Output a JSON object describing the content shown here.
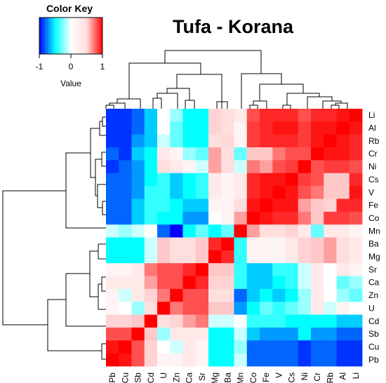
{
  "chart_data": {
    "type": "heatmap",
    "title": "Tufa - Korana",
    "color_key": {
      "title": "Color Key",
      "xlabel": "Value",
      "ticks": [
        "-1",
        "0",
        "1"
      ],
      "range": [
        -1,
        1
      ],
      "colors": {
        "low": "#0000ff",
        "mid_low": "#00ffff",
        "mid": "#ffffff",
        "high": "#ff0000"
      }
    },
    "row_labels": [
      "Li",
      "Al",
      "Rb",
      "Cr",
      "Ni",
      "Cs",
      "V",
      "Fe",
      "Co",
      "Mn",
      "Ba",
      "Mg",
      "Sr",
      "Ca",
      "Zn",
      "U",
      "Cd",
      "Sb",
      "Cu",
      "Pb"
    ],
    "col_labels": [
      "Pb",
      "Cu",
      "Sb",
      "Cd",
      "U",
      "Zn",
      "Ca",
      "Sr",
      "Mg",
      "Ba",
      "Mn",
      "Co",
      "Fe",
      "V",
      "Cs",
      "Ni",
      "Cr",
      "Rb",
      "Al",
      "Li"
    ],
    "values": [
      [
        -0.9,
        -0.9,
        -0.8,
        -0.6,
        0.0,
        -0.2,
        -0.5,
        -0.5,
        0.4,
        0.3,
        0.2,
        0.8,
        0.9,
        0.9,
        0.9,
        0.8,
        0.9,
        0.9,
        0.95,
        1.0
      ],
      [
        -0.9,
        -0.9,
        -0.8,
        -0.6,
        0.0,
        -0.3,
        -0.5,
        -0.5,
        0.4,
        0.3,
        0.1,
        0.85,
        0.9,
        0.95,
        0.95,
        0.85,
        0.95,
        0.95,
        1.0,
        0.95
      ],
      [
        -0.9,
        -0.9,
        -0.7,
        -0.6,
        -0.1,
        -0.3,
        -0.5,
        -0.5,
        0.3,
        0.35,
        0.1,
        0.85,
        0.9,
        0.9,
        0.9,
        0.85,
        0.95,
        1.0,
        0.95,
        0.9
      ],
      [
        -0.8,
        -0.9,
        -0.6,
        -0.5,
        0.2,
        0.1,
        -0.2,
        -0.3,
        0.6,
        0.3,
        -0.3,
        0.5,
        0.5,
        0.7,
        0.8,
        0.8,
        1.0,
        0.95,
        0.95,
        0.9
      ],
      [
        -0.9,
        -0.8,
        -0.7,
        -0.5,
        0.3,
        0.2,
        0.1,
        -0.1,
        0.6,
        0.3,
        -0.1,
        0.7,
        0.6,
        0.8,
        0.85,
        1.0,
        0.8,
        0.85,
        0.85,
        0.8
      ],
      [
        -0.8,
        -0.8,
        -0.7,
        -0.5,
        -0.4,
        -0.6,
        -0.5,
        -0.4,
        0.2,
        0.1,
        0.2,
        0.9,
        0.95,
        0.95,
        1.0,
        0.85,
        0.8,
        0.5,
        0.5,
        0.9
      ],
      [
        -0.8,
        -0.8,
        -0.7,
        -0.4,
        -0.4,
        -0.6,
        -0.5,
        -0.4,
        0.2,
        0.1,
        0.2,
        0.9,
        0.95,
        1.0,
        0.95,
        0.8,
        0.7,
        0.5,
        0.5,
        0.95
      ],
      [
        -0.8,
        -0.8,
        -0.6,
        -0.4,
        -0.4,
        -0.5,
        -0.6,
        -0.6,
        0.1,
        0.1,
        0.3,
        0.95,
        1.0,
        0.95,
        0.95,
        0.6,
        0.5,
        0.4,
        0.9,
        0.9
      ],
      [
        -0.8,
        -0.8,
        -0.6,
        -0.4,
        -0.5,
        -0.5,
        -0.7,
        -0.7,
        0.0,
        0.1,
        0.6,
        1.0,
        0.95,
        0.9,
        0.9,
        0.7,
        0.5,
        0.85,
        0.85,
        0.8
      ],
      [
        -0.1,
        -0.2,
        -0.1,
        0.0,
        -0.8,
        -1.0,
        -0.5,
        -0.3,
        -0.5,
        -0.3,
        1.0,
        0.6,
        0.3,
        0.3,
        0.4,
        0.2,
        -0.3,
        0.2,
        0.2,
        0.1
      ],
      [
        -0.5,
        -0.5,
        -0.5,
        -0.1,
        0.5,
        0.3,
        0.3,
        0.5,
        0.9,
        1.0,
        -0.4,
        0.1,
        0.1,
        0.1,
        0.2,
        0.4,
        0.5,
        0.6,
        0.3,
        0.2
      ],
      [
        -0.5,
        -0.5,
        -0.5,
        -0.1,
        0.5,
        0.3,
        0.3,
        0.5,
        1.0,
        0.9,
        -0.4,
        0.1,
        0.1,
        0.1,
        0.2,
        0.4,
        0.5,
        0.6,
        0.3,
        0.2
      ],
      [
        0.1,
        0.1,
        0.2,
        0.7,
        0.8,
        0.8,
        0.9,
        1.0,
        0.5,
        0.5,
        -0.4,
        -0.6,
        -0.6,
        -0.4,
        -0.4,
        -0.1,
        0.2,
        0.0,
        0.2,
        0.1
      ],
      [
        0.2,
        0.2,
        0.2,
        0.6,
        0.8,
        0.8,
        1.0,
        0.9,
        0.4,
        0.4,
        -0.4,
        -0.6,
        -0.6,
        -0.5,
        -0.4,
        -0.1,
        0.2,
        0.0,
        -0.3,
        -0.2
      ],
      [
        0.1,
        -0.1,
        0.2,
        0.4,
        0.7,
        1.0,
        0.8,
        0.8,
        0.3,
        0.3,
        -0.8,
        -0.6,
        -0.5,
        -0.6,
        -0.5,
        -0.2,
        0.2,
        0.0,
        -0.2,
        -0.3
      ],
      [
        0.1,
        0.0,
        -0.2,
        0.3,
        1.0,
        0.7,
        0.8,
        0.8,
        0.5,
        0.5,
        -0.7,
        -0.5,
        -0.3,
        -0.4,
        -0.3,
        -0.2,
        0.2,
        -0.1,
        0.1,
        0.0
      ],
      [
        0.4,
        0.4,
        0.5,
        1.0,
        0.3,
        0.4,
        0.6,
        0.7,
        -0.1,
        -0.1,
        0.0,
        -0.4,
        -0.4,
        -0.4,
        -0.5,
        -0.5,
        -0.5,
        -0.5,
        -0.6,
        -0.6
      ],
      [
        0.8,
        0.8,
        1.0,
        0.5,
        -0.2,
        0.2,
        0.2,
        0.2,
        -0.5,
        -0.5,
        -0.1,
        -0.6,
        -0.7,
        -0.7,
        -0.7,
        -0.5,
        -0.7,
        -0.7,
        -0.8,
        -0.8
      ],
      [
        0.95,
        1.0,
        0.8,
        0.4,
        0.0,
        -0.1,
        0.2,
        0.1,
        -0.5,
        -0.5,
        -0.2,
        -0.8,
        -0.8,
        -0.8,
        -0.8,
        -0.9,
        -0.8,
        -0.8,
        -0.9,
        -0.9
      ],
      [
        1.0,
        0.95,
        0.8,
        0.4,
        0.1,
        0.1,
        0.2,
        0.1,
        -0.5,
        -0.5,
        -0.1,
        -0.8,
        -0.8,
        -0.8,
        -0.8,
        -0.9,
        -0.8,
        -0.8,
        -0.9,
        -0.9
      ]
    ]
  }
}
